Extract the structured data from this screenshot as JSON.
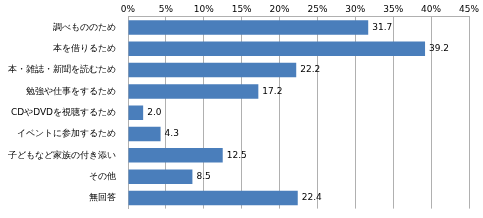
{
  "chart_data": {
    "type": "bar",
    "orientation": "horizontal",
    "categories": [
      "調べもののため",
      "本を借りるため",
      "本・雑誌・新聞を読むため",
      "勉強や仕事をするため",
      "CDやDVDを視聴するため",
      "イベントに参加するため",
      "子どもなど家族の付き添い",
      "その他",
      "無回答"
    ],
    "values": [
      31.7,
      39.2,
      22.2,
      17.2,
      2.0,
      4.3,
      12.5,
      8.5,
      22.4
    ],
    "value_labels": [
      "31.7",
      "39.2",
      "22.2",
      "17.2",
      "2.0",
      "4.3",
      "12.5",
      "8.5",
      "22.4"
    ],
    "color": "#4a7ebb",
    "xlim": [
      0,
      45
    ],
    "xticks": [
      {
        "value": 0,
        "label": "0%"
      },
      {
        "value": 5,
        "label": "5%"
      },
      {
        "value": 10,
        "label": "10%"
      },
      {
        "value": 15,
        "label": "15%"
      },
      {
        "value": 20,
        "label": "20%"
      },
      {
        "value": 25,
        "label": "25%"
      },
      {
        "value": 30,
        "label": "30%"
      },
      {
        "value": 35,
        "label": "35%"
      },
      {
        "value": 40,
        "label": "40%"
      },
      {
        "value": 45,
        "label": "45%"
      }
    ],
    "grid": true,
    "data_labels": true
  }
}
